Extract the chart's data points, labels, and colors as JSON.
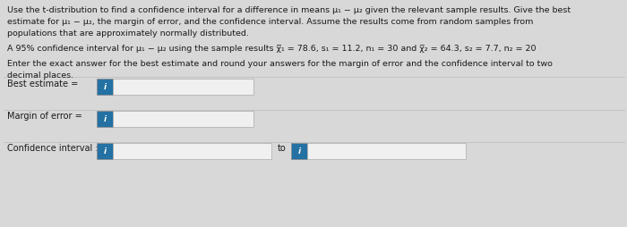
{
  "bg_color": "#d8d8d8",
  "text_color": "#1a1a1a",
  "blue_btn_color": "#2471a3",
  "input_bg": "#f0f0f0",
  "input_border": "#aaaaaa",
  "line1": "Use the t-distribution to find a confidence interval for a difference in means μ₁ − μ₂ given the relevant sample results. Give the best",
  "line2": "estimate for μ₁ − μ₂, the margin of error, and the confidence interval. Assume the results come from random samples from",
  "line3": "populations that are approximately normally distributed.",
  "line4": "A 95% confidence interval for μ₁ − μ₂ using the sample results χ̅₁ = 78.6, s₁ = 11.2, n₁ = 30 and χ̅₂ = 64.3, s₂ = 7.7, n₂ = 20",
  "line5": "Enter the exact answer for the best estimate and round your answers for the margin of error and the confidence interval to two",
  "line6": "decimal places.",
  "label_best": "Best estimate =",
  "label_margin": "Margin of error =",
  "label_ci": "Confidence interval :",
  "label_to": "to",
  "btn_label": "i",
  "fs_body": 6.8,
  "fs_label": 7.0,
  "fs_btn": 6.5
}
